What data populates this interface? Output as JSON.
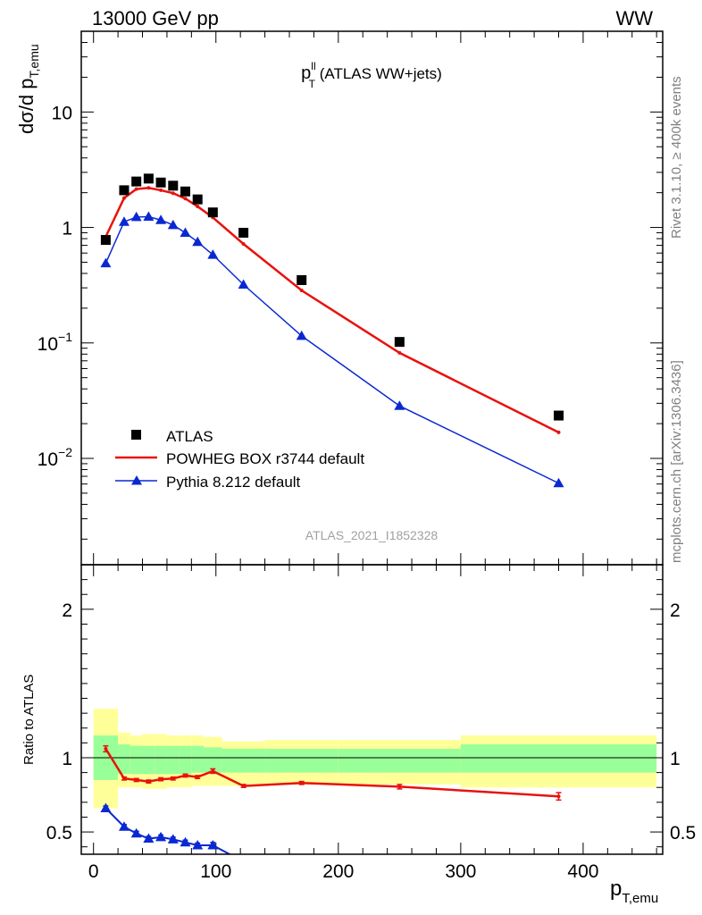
{
  "header": {
    "left": "13000 GeV pp",
    "right": "WW"
  },
  "side_texts": {
    "top": "Rivet 3.1.10, ≥ 400k events",
    "bottom": "mcplots.cern.ch [arXiv:1306.3436]"
  },
  "chart_data": [
    {
      "type": "scatter",
      "role": "main",
      "title_main": "p",
      "title_sup": "ll",
      "title_sub": "T",
      "title_rest": " (ATLAS WW+jets)",
      "ylabel_main": "dσ/d p",
      "ylabel_sub": "T,emu",
      "yscale": "log",
      "ylim": [
        0.0012,
        50
      ],
      "xlim": [
        -10,
        465
      ],
      "y_ticks": [
        {
          "value": 0.01,
          "base": "10",
          "exp": "−2"
        },
        {
          "value": 0.1,
          "base": "10",
          "exp": "−1"
        },
        {
          "value": 1,
          "base": "1",
          "exp": ""
        },
        {
          "value": 10,
          "base": "10",
          "exp": ""
        }
      ],
      "watermark": "ATLAS_2021_I1852328",
      "x": [
        10,
        25,
        35,
        45,
        55,
        65,
        75,
        85,
        97.5,
        122.5,
        170,
        250,
        380
      ],
      "series": [
        {
          "name": "ATLAS",
          "marker": "square",
          "color": "#000000",
          "values": [
            0.78,
            2.1,
            2.5,
            2.65,
            2.45,
            2.3,
            2.05,
            1.75,
            1.35,
            0.9,
            0.35,
            0.102,
            0.0235
          ]
        },
        {
          "name": "POWHEG BOX r3744 default",
          "marker": "line",
          "color": "#e8120c",
          "values": [
            0.83,
            1.8,
            2.15,
            2.2,
            2.1,
            1.98,
            1.78,
            1.52,
            1.22,
            0.72,
            0.285,
            0.082,
            0.0168
          ]
        },
        {
          "name": "Pythia 8.212 default",
          "marker": "triangle",
          "color": "#0a28d2",
          "values": [
            0.49,
            1.12,
            1.23,
            1.24,
            1.16,
            1.05,
            0.9,
            0.75,
            0.58,
            0.32,
            0.115,
            0.0285,
            0.0061
          ]
        }
      ]
    },
    {
      "type": "scatter",
      "role": "ratio",
      "ylabel": "Ratio to ATLAS",
      "xlabel_main": "p",
      "xlabel_sub": "T,emu",
      "ylim": [
        0.35,
        2.3
      ],
      "xlim": [
        -10,
        465
      ],
      "x_ticks": [
        0,
        100,
        200,
        300,
        400
      ],
      "y_ticks": [
        0.5,
        1,
        2
      ],
      "bands": {
        "edges": [
          0,
          20,
          30,
          40,
          50,
          60,
          70,
          80,
          90,
          105,
          140,
          200,
          300,
          460
        ],
        "yellow": [
          [
            0.66,
            1.33
          ],
          [
            0.8,
            1.17
          ],
          [
            0.8,
            1.15
          ],
          [
            0.79,
            1.16
          ],
          [
            0.79,
            1.16
          ],
          [
            0.8,
            1.15
          ],
          [
            0.8,
            1.15
          ],
          [
            0.81,
            1.15
          ],
          [
            0.81,
            1.14
          ],
          [
            0.81,
            1.11
          ],
          [
            0.82,
            1.12
          ],
          [
            0.82,
            1.12
          ],
          [
            0.8,
            1.15
          ]
        ],
        "green": [
          [
            0.85,
            1.15
          ],
          [
            0.89,
            1.09
          ],
          [
            0.89,
            1.08
          ],
          [
            0.89,
            1.08
          ],
          [
            0.89,
            1.08
          ],
          [
            0.89,
            1.08
          ],
          [
            0.89,
            1.08
          ],
          [
            0.9,
            1.08
          ],
          [
            0.9,
            1.07
          ],
          [
            0.9,
            1.06
          ],
          [
            0.9,
            1.06
          ],
          [
            0.9,
            1.06
          ],
          [
            0.9,
            1.09
          ]
        ]
      },
      "reference": 1,
      "series": [
        {
          "name": "POWHEG BOX r3744 default",
          "color": "#e8120c",
          "marker": "line",
          "x": [
            10,
            25,
            35,
            45,
            55,
            65,
            75,
            85,
            97.5,
            122.5,
            170,
            250,
            380
          ],
          "values": [
            1.06,
            0.86,
            0.85,
            0.84,
            0.855,
            0.86,
            0.88,
            0.87,
            0.91,
            0.81,
            0.83,
            0.805,
            0.74
          ],
          "errors": [
            0.02,
            0.01,
            0.01,
            0.01,
            0.01,
            0.01,
            0.01,
            0.01,
            0.015,
            0.01,
            0.01,
            0.015,
            0.025
          ]
        },
        {
          "name": "Pythia 8.212 default",
          "color": "#0a28d2",
          "marker": "triangle",
          "x": [
            10,
            25,
            35,
            45,
            55,
            65,
            75,
            85,
            97.5
          ],
          "values": [
            0.66,
            0.535,
            0.49,
            0.455,
            0.465,
            0.45,
            0.43,
            0.41,
            0.41
          ],
          "errors": [
            0.015,
            0.015,
            0.015,
            0.015,
            0.015,
            0.015,
            0.015,
            0.015,
            0.02
          ],
          "trail_x": [
            97.5,
            122.5
          ],
          "trail_values": [
            0.41,
            0.3
          ]
        }
      ]
    }
  ]
}
